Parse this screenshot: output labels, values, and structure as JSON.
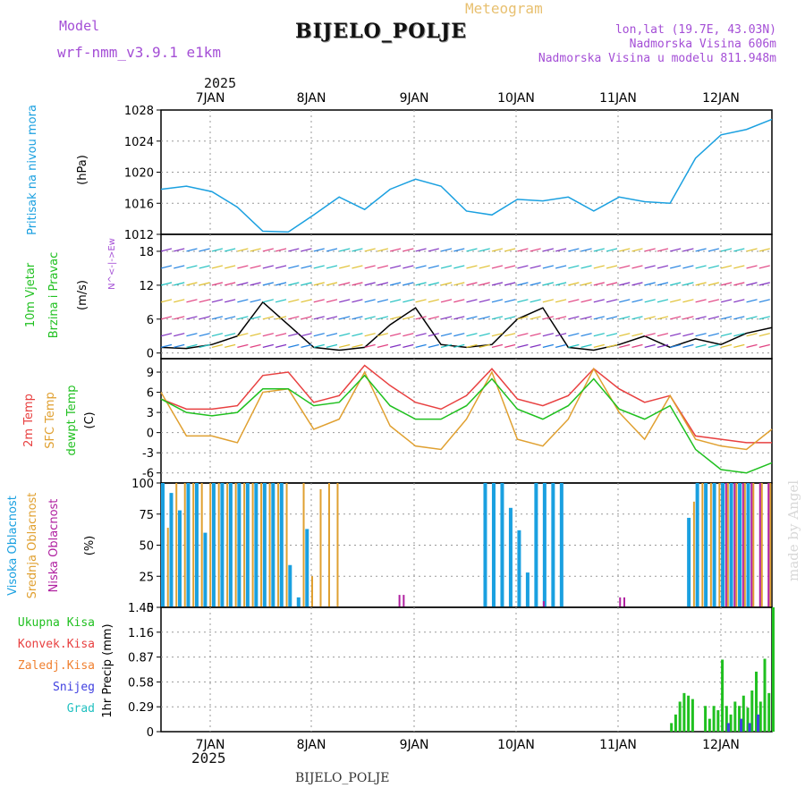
{
  "header": {
    "model_label": "Model",
    "model_name": "wrf-nmm_v3.9.1 e1km",
    "title": "BIJELO_POLJE",
    "meteogram": "Meteogram",
    "lonlat": "lon,lat (19.7E, 43.03N)",
    "elevation": "Nadmorska Visina 606m",
    "model_elevation": "Nadmorska Visina u modelu 811.948m",
    "year_top": "2025",
    "year_bottom": "2025",
    "bottom_label": "BIJELO_POLJE",
    "watermark": "made by Angel"
  },
  "colors": {
    "pressure": "#1aa0e0",
    "wind_black": "#000000",
    "temp2m": "#e84040",
    "sfc": "#e0a030",
    "dewpt": "#20c020",
    "high": "#1aa0e0",
    "mid": "#e0a030",
    "low": "#b020a0",
    "total": "#20c020",
    "conv": "#e84040",
    "frz": "#f08030",
    "snow": "#4040e0",
    "hail": "#20c0c0",
    "label_purple": "#a44ed6"
  },
  "chart_data": [
    {
      "type": "line",
      "panel": "pressure",
      "ylabel_lines": [
        "Pritisak na nivou mora",
        "(hPa)"
      ],
      "ylim": [
        1012,
        1028
      ],
      "yticks": [
        "1028",
        "1024",
        "1020",
        "1016",
        "1012"
      ],
      "xlabels": [
        "7JAN",
        "8JAN",
        "9JAN",
        "10JAN",
        "11JAN",
        "12JAN"
      ],
      "x_hours": [
        0,
        6,
        12,
        18,
        24,
        30,
        36,
        42,
        48,
        54,
        60,
        66,
        72,
        78,
        84,
        90,
        96,
        102,
        108,
        114,
        120,
        126,
        132,
        138,
        144
      ],
      "series": [
        {
          "values": [
            1017.8,
            1018.2,
            1017.5,
            1015.5,
            1012.4,
            1012.3,
            1014.5,
            1016.8,
            1015.2,
            1017.8,
            1019.1,
            1018.2,
            1015.0,
            1014.5,
            1016.5,
            1016.3,
            1016.8,
            1015.0,
            1016.8,
            1016.2,
            1016.0,
            1021.8,
            1024.8,
            1025.5,
            1026.8
          ]
        }
      ]
    },
    {
      "type": "line",
      "panel": "wind",
      "ylabel_lines": [
        "10m Vjetar",
        "Brzina i Pravac",
        "(m/s)"
      ],
      "compass": "N^<-|->Ew",
      "ylim": [
        -1,
        21
      ],
      "yticks": [
        "18",
        "12",
        "6",
        "0"
      ],
      "x_hours": [
        0,
        6,
        12,
        18,
        24,
        30,
        36,
        42,
        48,
        54,
        60,
        66,
        72,
        78,
        84,
        90,
        96,
        102,
        108,
        114,
        120,
        126,
        132,
        138,
        144
      ],
      "series": [
        {
          "name": "speed",
          "values": [
            1.0,
            0.8,
            1.5,
            3.0,
            9.0,
            5.0,
            1.0,
            0.5,
            1.0,
            5.0,
            8.0,
            1.5,
            1.0,
            1.5,
            6.0,
            8.0,
            1.0,
            0.5,
            1.5,
            3.0,
            1.0,
            2.5,
            1.5,
            3.5,
            4.5
          ]
        }
      ]
    },
    {
      "type": "line",
      "panel": "temperature",
      "ylabel_lines": [
        "2m Temp",
        "SFC Temp",
        "dewpt Temp",
        "(C)"
      ],
      "ylim": [
        -7.5,
        11
      ],
      "yticks": [
        "9",
        "6",
        "3",
        "0",
        "-3",
        "-6"
      ],
      "x_hours": [
        0,
        6,
        12,
        18,
        24,
        30,
        36,
        42,
        48,
        54,
        60,
        66,
        72,
        78,
        84,
        90,
        96,
        102,
        108,
        114,
        120,
        126,
        132,
        138,
        144
      ],
      "series": [
        {
          "name": "2m Temp",
          "values": [
            5.0,
            3.5,
            3.5,
            4.0,
            8.5,
            9.0,
            4.5,
            5.5,
            10.0,
            7.0,
            4.5,
            3.5,
            5.5,
            9.5,
            5.0,
            4.0,
            5.5,
            9.5,
            6.5,
            4.5,
            5.5,
            -0.5,
            -1.0,
            -1.5,
            -1.5
          ]
        },
        {
          "name": "SFC Temp",
          "values": [
            6.0,
            -0.5,
            -0.5,
            -1.5,
            6.0,
            6.5,
            0.5,
            2.0,
            9.0,
            1.0,
            -2.0,
            -2.5,
            2.0,
            9.0,
            -1.0,
            -2.0,
            2.0,
            9.5,
            3.0,
            -1.0,
            5.5,
            -1.0,
            -2.0,
            -2.5,
            0.5
          ]
        },
        {
          "name": "dewpt Temp",
          "values": [
            5.0,
            3.0,
            2.5,
            3.0,
            6.5,
            6.5,
            4.0,
            4.5,
            8.5,
            4.0,
            2.0,
            2.0,
            4.0,
            8.0,
            3.5,
            2.0,
            4.0,
            8.0,
            3.5,
            2.0,
            4.0,
            -2.5,
            -5.5,
            -6.0,
            -4.5
          ]
        }
      ]
    },
    {
      "type": "bar",
      "panel": "clouds",
      "ylabel_lines": [
        "Visoka Oblacnost",
        "Srednja Oblacnost",
        "Niska Oblacnost",
        "(%)"
      ],
      "ylim": [
        0,
        100
      ],
      "yticks": [
        "100",
        "75",
        "50",
        "25",
        "0"
      ],
      "series": [
        {
          "name": "Visoka Oblacnost",
          "hours": [
            0,
            2,
            4,
            6,
            8,
            10,
            12,
            14,
            16,
            18,
            20,
            22,
            24,
            26,
            28,
            30,
            32,
            34,
            76,
            78,
            80,
            82,
            84,
            86,
            88,
            90,
            92,
            94,
            124,
            126,
            128,
            130,
            132,
            134,
            136,
            138
          ],
          "values": [
            100,
            92,
            78,
            100,
            100,
            60,
            100,
            100,
            100,
            100,
            100,
            100,
            100,
            100,
            100,
            34,
            8,
            63,
            100,
            100,
            100,
            80,
            62,
            28,
            100,
            100,
            100,
            100,
            72,
            100,
            100,
            100,
            100,
            100,
            100,
            100
          ]
        },
        {
          "name": "Srednja Oblacnost",
          "hours": [
            1,
            3,
            5,
            7,
            9,
            11,
            13,
            15,
            17,
            19,
            21,
            23,
            25,
            27,
            29,
            33,
            35,
            37,
            39,
            41,
            125,
            127,
            129,
            131,
            133,
            135,
            137,
            139,
            141,
            143
          ],
          "values": [
            64,
            100,
            100,
            100,
            100,
            100,
            100,
            100,
            100,
            100,
            100,
            100,
            100,
            100,
            100,
            100,
            25,
            95,
            100,
            100,
            85,
            100,
            100,
            100,
            100,
            100,
            100,
            100,
            100,
            100
          ]
        },
        {
          "name": "Niska Oblacnost",
          "hours": [
            56,
            57,
            90,
            108,
            109,
            133,
            135,
            137,
            139,
            141,
            143
          ],
          "values": [
            10,
            10,
            5,
            8,
            8,
            100,
            100,
            100,
            100,
            100,
            100
          ]
        }
      ]
    },
    {
      "type": "bar",
      "panel": "precip",
      "ylabel_lines": [
        "1hr Precip (mm)"
      ],
      "legend": [
        "Ukupna Kisa",
        "Konvek.Kisa",
        "Zaledj.Kisa",
        "Snijeg",
        "Grad"
      ],
      "ylim": [
        0,
        1.45
      ],
      "yticks": [
        "1.45",
        "1.16",
        "0.87",
        "0.58",
        "0.29",
        "0"
      ],
      "xlabels": [
        "7JAN",
        "8JAN",
        "9JAN",
        "10JAN",
        "11JAN",
        "12JAN"
      ],
      "series": [
        {
          "name": "Ukupna Kisa",
          "hours": [
            120,
            121,
            122,
            123,
            124,
            125,
            128,
            129,
            130,
            131,
            132,
            133,
            134,
            135,
            136,
            137,
            138,
            139,
            140,
            141,
            142,
            143,
            144
          ],
          "values": [
            0.1,
            0.2,
            0.35,
            0.45,
            0.42,
            0.38,
            0.3,
            0.15,
            0.3,
            0.25,
            0.84,
            0.3,
            0.2,
            0.35,
            0.3,
            0.42,
            0.28,
            0.48,
            0.7,
            0.35,
            0.85,
            0.45,
            1.45
          ]
        },
        {
          "name": "Snijeg",
          "hours": [
            133,
            136,
            138,
            140
          ],
          "values": [
            0.1,
            0.15,
            0.1,
            0.2
          ]
        }
      ]
    }
  ]
}
